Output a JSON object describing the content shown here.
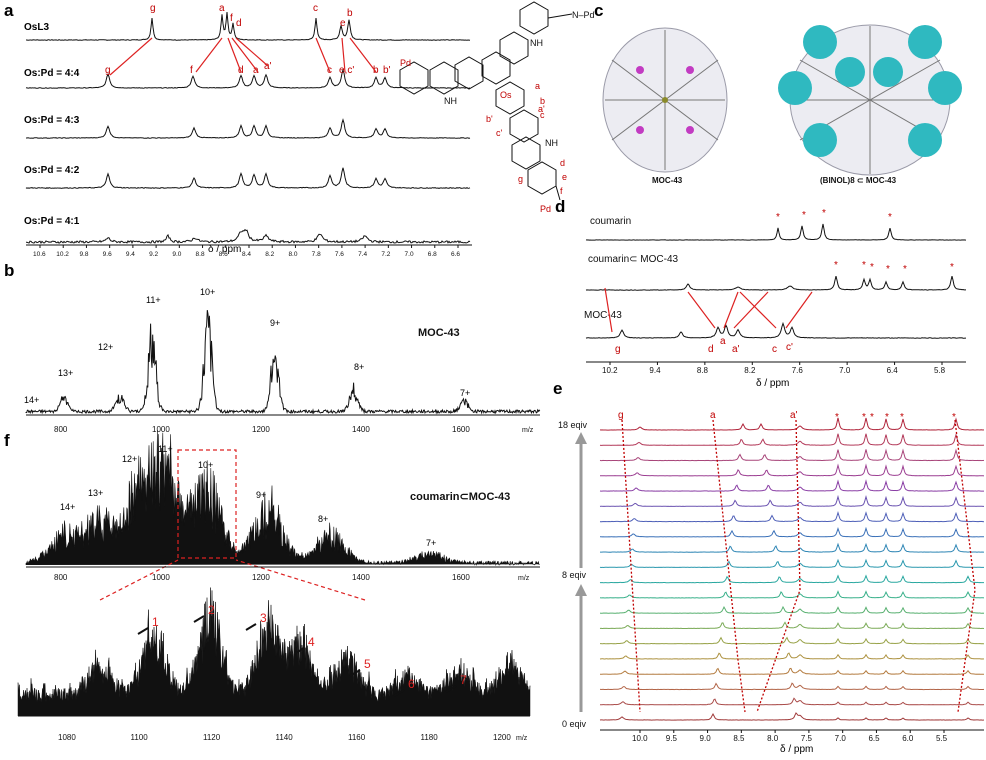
{
  "panels": {
    "a": {
      "letter": "a",
      "traces": [
        "OsL3",
        "Os:Pd = 4:4",
        "Os:Pd = 4:3",
        "Os:Pd = 4:2",
        "Os:Pd = 4:1"
      ],
      "top_labels": [
        "g",
        "a",
        "f",
        "d",
        "c",
        "b",
        "e"
      ],
      "mid_labels": [
        "g",
        "f",
        "d",
        "a",
        "a'",
        "c",
        "e,c'",
        "b",
        "b'"
      ],
      "xticks": [
        "10.6",
        "10.2",
        "9.8",
        "9.6",
        "9.4",
        "9.2",
        "9.0",
        "8.8",
        "8.6",
        "8.4",
        "8.2",
        "8.0",
        "7.8",
        "7.6",
        "7.4",
        "7.2",
        "7.0",
        "6.8",
        "6.6"
      ],
      "xlabel": "δ / ppm",
      "structure_labels": [
        "N–Pd",
        "NH",
        "Os",
        "Pd",
        "NH",
        "a",
        "b",
        "c",
        "b'",
        "c'",
        "a'",
        "NH",
        "d",
        "e",
        "f",
        "g",
        "Pd"
      ]
    },
    "b": {
      "letter": "b",
      "title": "MOC-43",
      "charges": [
        "14+",
        "13+",
        "12+",
        "11+",
        "10+",
        "9+",
        "8+",
        "7+"
      ],
      "xticks": [
        "800",
        "1000",
        "1200",
        "1400",
        "1600"
      ],
      "xunit": "m/z"
    },
    "c": {
      "letter": "c",
      "left_caption": "MOC-43",
      "right_caption": "(BINOL)8 ⊂ MOC-43"
    },
    "d": {
      "letter": "d",
      "traces": [
        "coumarin",
        "coumarin⊂ MOC-43",
        "MOC-43"
      ],
      "peak_labels": [
        "g",
        "d",
        "a",
        "a'",
        "c",
        "c'"
      ],
      "star": "*",
      "xticks": [
        "10.2",
        "9.4",
        "8.8",
        "8.2",
        "7.6",
        "7.0",
        "6.4",
        "5.8"
      ],
      "xlabel": "δ / ppm"
    },
    "e": {
      "letter": "e",
      "equiv_labels": [
        "18 eqiv",
        "8 eqiv",
        "0 eqiv"
      ],
      "peak_labels": [
        "g",
        "a",
        "a'"
      ],
      "star": "*",
      "xticks": [
        "10.0",
        "9.5",
        "9.0",
        "8.5",
        "8.0",
        "7.5",
        "7.0",
        "6.5",
        "6.0",
        "5.5"
      ],
      "xlabel": "δ / ppm"
    },
    "f": {
      "letter": "f",
      "title": "coumarin⊂MOC-43",
      "charges": [
        "14+",
        "13+",
        "12+",
        "11+",
        "10+",
        "9+",
        "8+",
        "7+"
      ],
      "xticks": [
        "800",
        "1000",
        "1200",
        "1400",
        "1600"
      ],
      "xunit": "m/z",
      "zoom_xticks": [
        "1080",
        "1100",
        "1120",
        "1140",
        "1160",
        "1180",
        "1200"
      ],
      "zoom_peaks": [
        "1",
        "2",
        "3",
        "4",
        "5",
        "6",
        "7"
      ]
    }
  },
  "colors": {
    "accent_red": "#d22222",
    "cyan": "#2fb9c0",
    "ink": "#111111"
  }
}
